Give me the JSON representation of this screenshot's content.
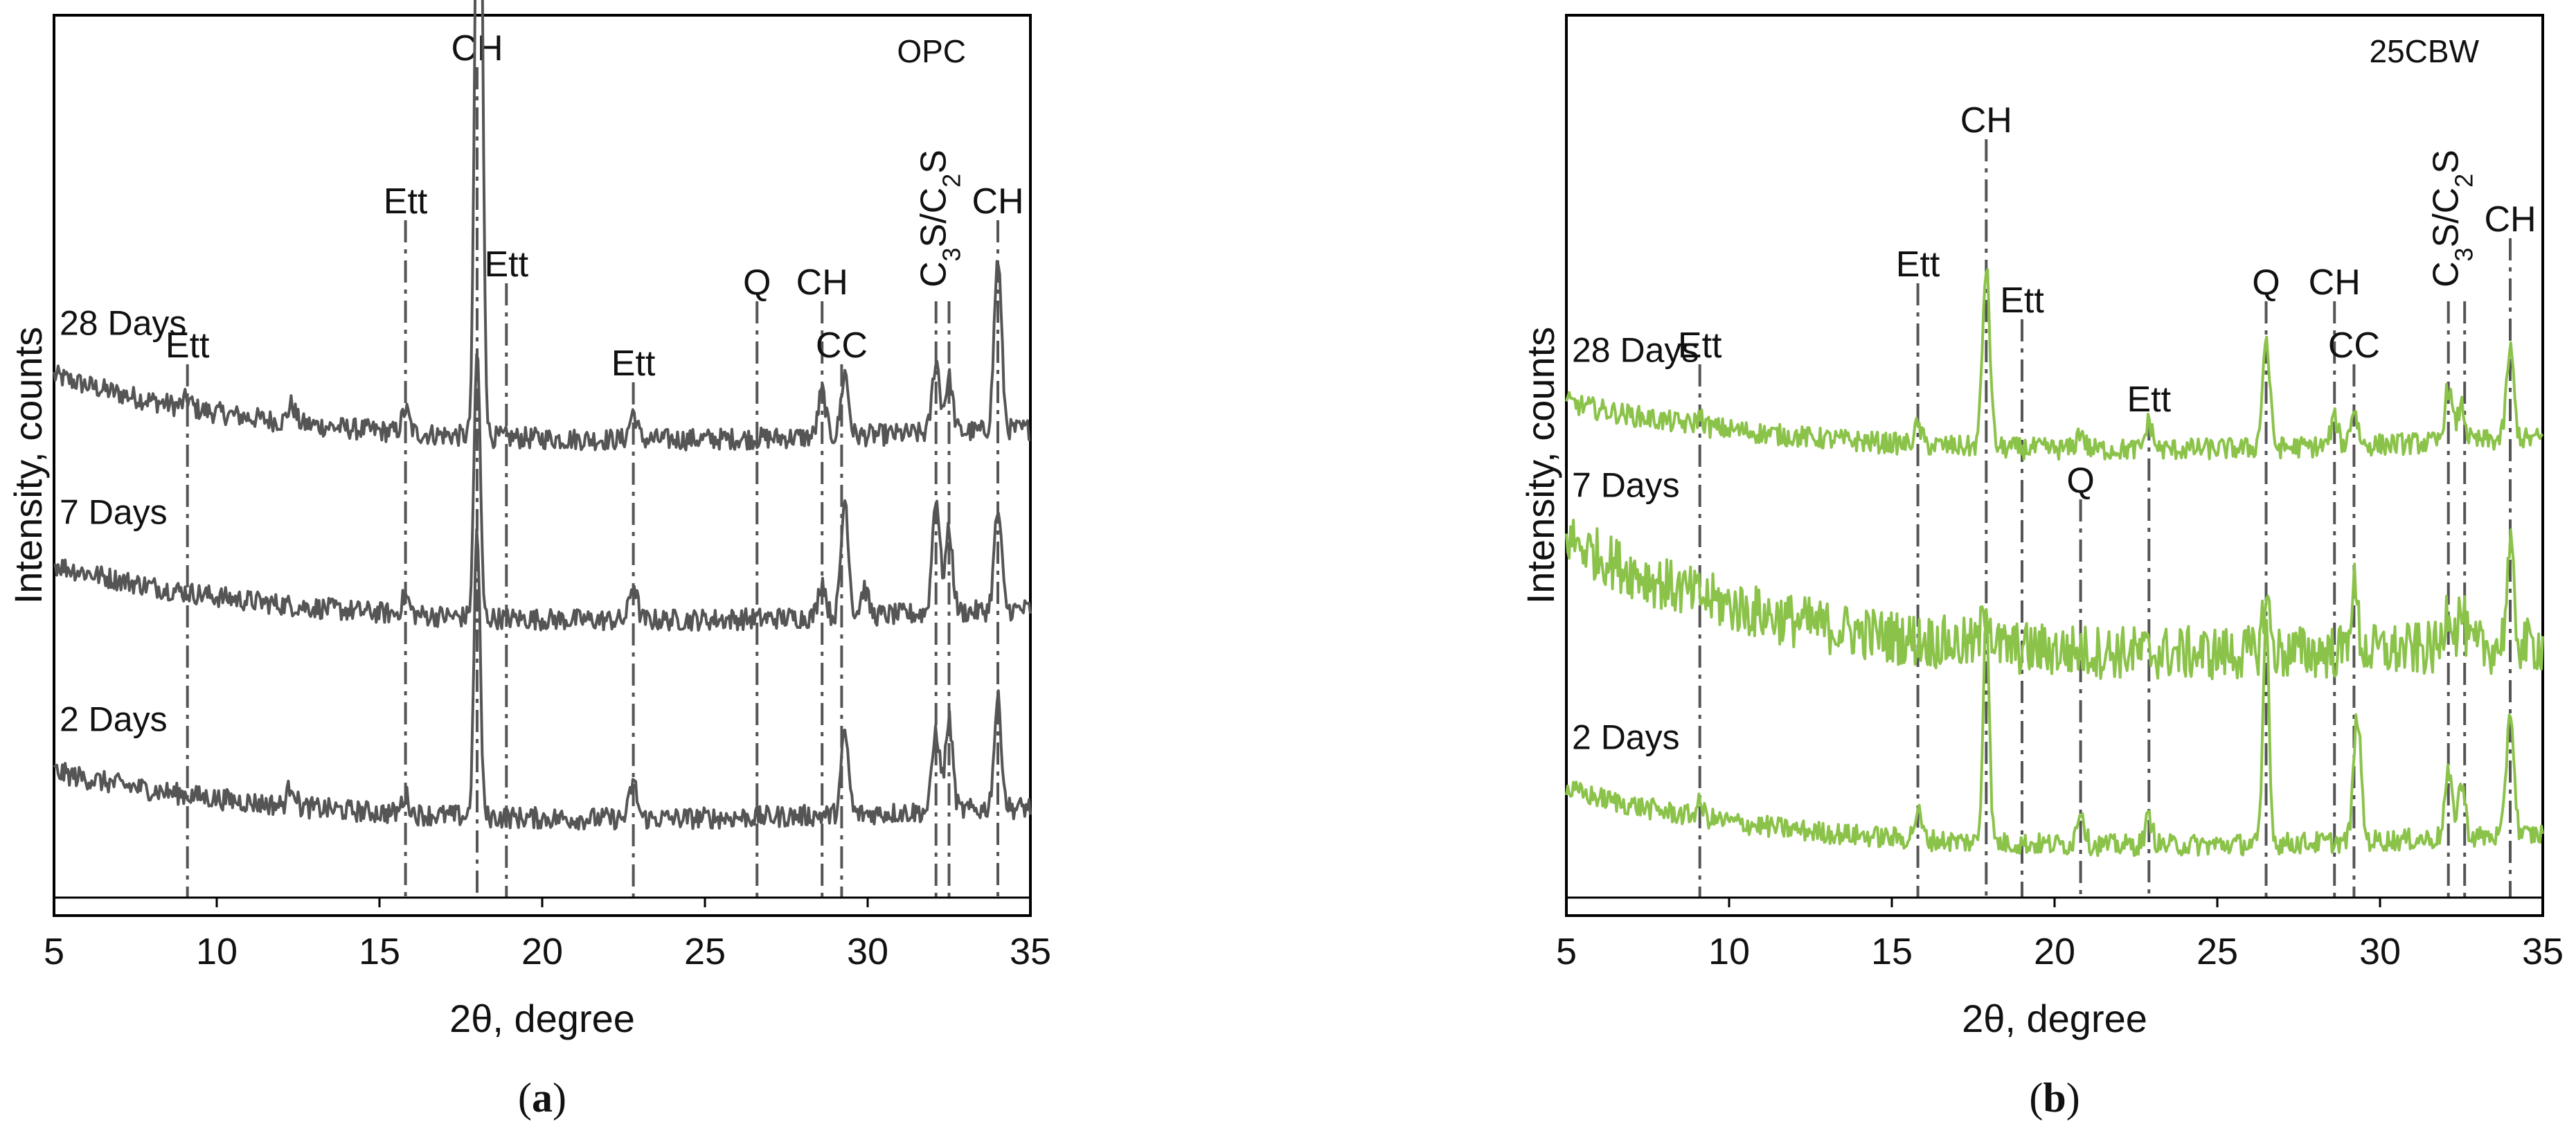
{
  "colors": {
    "opc": "#555555",
    "cbw": "#8bc34a",
    "peak_line": "#555555"
  },
  "chart_data": [
    {
      "type": "line",
      "panel_label": "OPC",
      "caption_letter": "a",
      "xlabel": "2θ, degree",
      "ylabel": "Intensity, counts",
      "xlim": [
        5,
        35
      ],
      "x_ticks": [
        "5",
        "10",
        "15",
        "20",
        "25",
        "30",
        "35"
      ],
      "series": [
        {
          "name": "28 Days",
          "baseline": 0.54,
          "start_rise": 0.06,
          "noise": 0.012,
          "peaks": [
            [
              9.1,
              0.01
            ],
            [
              12.3,
              0.02
            ],
            [
              15.8,
              0.025
            ],
            [
              18.0,
              0.48
            ],
            [
              18.1,
              0.5
            ],
            [
              22.8,
              0.03
            ],
            [
              28.6,
              0.05
            ],
            [
              29.3,
              0.07
            ],
            [
              32.1,
              0.08
            ],
            [
              32.5,
              0.06
            ],
            [
              34.0,
              0.19
            ]
          ]
        },
        {
          "name": "7 Days",
          "baseline": 0.34,
          "start_rise": 0.05,
          "noise": 0.012,
          "peaks": [
            [
              15.8,
              0.02
            ],
            [
              18.0,
              0.3
            ],
            [
              22.8,
              0.04
            ],
            [
              28.6,
              0.04
            ],
            [
              29.3,
              0.13
            ],
            [
              29.9,
              0.03
            ],
            [
              32.1,
              0.13
            ],
            [
              32.5,
              0.09
            ],
            [
              34.0,
              0.11
            ]
          ]
        },
        {
          "name": "2 Days",
          "baseline": 0.12,
          "start_rise": 0.04,
          "noise": 0.012,
          "peaks": [
            [
              12.3,
              0.025
            ],
            [
              15.8,
              0.02
            ],
            [
              18.0,
              0.32
            ],
            [
              22.8,
              0.04
            ],
            [
              29.3,
              0.09
            ],
            [
              32.1,
              0.09
            ],
            [
              32.5,
              0.1
            ],
            [
              34.0,
              0.12
            ]
          ]
        }
      ],
      "peak_markers": [
        {
          "label": "Ett",
          "x": 9.1,
          "top": 0.62
        },
        {
          "label": "Ett",
          "x": 15.8,
          "top": 0.78
        },
        {
          "label": "CH",
          "x": 18.0,
          "top": 0.95
        },
        {
          "label": "Ett",
          "x": 18.9,
          "top": 0.71
        },
        {
          "label": "Ett",
          "x": 22.8,
          "top": 0.6
        },
        {
          "label": "Q",
          "x": 26.6,
          "top": 0.69
        },
        {
          "label": "CH",
          "x": 28.6,
          "top": 0.69
        },
        {
          "label": "CC",
          "x": 29.2,
          "top": 0.62
        },
        {
          "label": "C3S/C2S",
          "x": 32.1,
          "top": 0.69
        },
        {
          "label": "",
          "x": 32.5,
          "top": 0.69
        },
        {
          "label": "CH",
          "x": 34.0,
          "top": 0.78
        }
      ]
    },
    {
      "type": "line",
      "panel_label": "25CBW",
      "caption_letter": "b",
      "xlabel": "2θ, degree",
      "ylabel": "Intensity, counts",
      "xlim": [
        5,
        35
      ],
      "x_ticks": [
        "5",
        "10",
        "15",
        "20",
        "25",
        "30",
        "35"
      ],
      "series": [
        {
          "name": "28 Days",
          "baseline": 0.53,
          "start_rise": 0.04,
          "noise": 0.012,
          "peaks": [
            [
              9.1,
              0.01
            ],
            [
              15.8,
              0.02
            ],
            [
              17.9,
              0.2
            ],
            [
              20.8,
              0.02
            ],
            [
              22.9,
              0.03
            ],
            [
              26.5,
              0.12
            ],
            [
              28.6,
              0.03
            ],
            [
              29.2,
              0.04
            ],
            [
              32.1,
              0.06
            ],
            [
              32.5,
              0.04
            ],
            [
              34.0,
              0.1
            ]
          ]
        },
        {
          "name": "7 Days",
          "baseline": 0.3,
          "start_rise": 0.12,
          "noise": 0.03,
          "peaks": [
            [
              17.9,
              0.05
            ],
            [
              26.5,
              0.06
            ],
            [
              29.2,
              0.07
            ],
            [
              32.1,
              0.05
            ],
            [
              32.5,
              0.04
            ],
            [
              34.0,
              0.1
            ]
          ]
        },
        {
          "name": "2 Days",
          "baseline": 0.09,
          "start_rise": 0.05,
          "noise": 0.012,
          "peaks": [
            [
              9.1,
              0.015
            ],
            [
              15.8,
              0.03
            ],
            [
              17.9,
              0.26
            ],
            [
              20.8,
              0.04
            ],
            [
              22.9,
              0.03
            ],
            [
              26.5,
              0.25
            ],
            [
              29.3,
              0.14
            ],
            [
              32.1,
              0.07
            ],
            [
              32.5,
              0.06
            ],
            [
              34.0,
              0.14
            ]
          ]
        }
      ],
      "peak_markers": [
        {
          "label": "Ett",
          "x": 9.1,
          "top": 0.62
        },
        {
          "label": "Ett",
          "x": 15.8,
          "top": 0.71
        },
        {
          "label": "CH",
          "x": 17.9,
          "top": 0.87
        },
        {
          "label": "Ett",
          "x": 19.0,
          "top": 0.67
        },
        {
          "label": "Q",
          "x": 20.8,
          "top": 0.47
        },
        {
          "label": "Ett",
          "x": 22.9,
          "top": 0.56
        },
        {
          "label": "Q",
          "x": 26.5,
          "top": 0.69
        },
        {
          "label": "CH",
          "x": 28.6,
          "top": 0.69
        },
        {
          "label": "CC",
          "x": 29.2,
          "top": 0.62
        },
        {
          "label": "C3S/C2S",
          "x": 32.1,
          "top": 0.69
        },
        {
          "label": "",
          "x": 32.6,
          "top": 0.69
        },
        {
          "label": "CH",
          "x": 34.0,
          "top": 0.76
        }
      ]
    }
  ]
}
